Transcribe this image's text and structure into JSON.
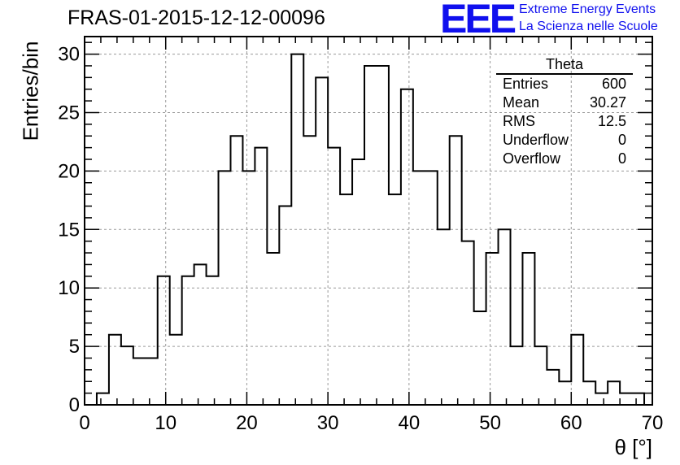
{
  "header": {
    "run_title": "FRAS-01-2015-12-12-00096",
    "logo_text": "EEE",
    "logo_line1": "Extreme Energy Events",
    "logo_line2": "La Scienza nelle Scuole",
    "logo_color": "#1010ee"
  },
  "stats": {
    "title": "Theta",
    "rows": [
      {
        "label": "Entries",
        "value": "600"
      },
      {
        "label": "Mean",
        "value": "30.27"
      },
      {
        "label": "RMS",
        "value": "12.5"
      },
      {
        "label": "Underflow",
        "value": "0"
      },
      {
        "label": "Overflow",
        "value": "0"
      }
    ]
  },
  "chart_data": {
    "type": "histogram",
    "ylabel": "Entries/bin",
    "xlabel": "θ [°]",
    "xlim": [
      0,
      70
    ],
    "ylim": [
      0,
      31.5
    ],
    "xticks": [
      0,
      10,
      20,
      30,
      40,
      50,
      60,
      70
    ],
    "yticks": [
      0,
      5,
      10,
      15,
      20,
      25,
      30
    ],
    "grid": true,
    "bin_width": 1.5,
    "bin_edges_start": 1.5,
    "values": [
      1,
      6,
      5,
      4,
      4,
      11,
      6,
      11,
      12,
      11,
      20,
      23,
      20,
      22,
      13,
      17,
      30,
      23,
      28,
      22,
      18,
      21,
      29,
      29,
      18,
      27,
      20,
      20,
      15,
      23,
      14,
      8,
      13,
      15,
      5,
      13,
      5,
      3,
      2,
      6,
      2,
      1,
      2,
      1,
      1
    ]
  }
}
